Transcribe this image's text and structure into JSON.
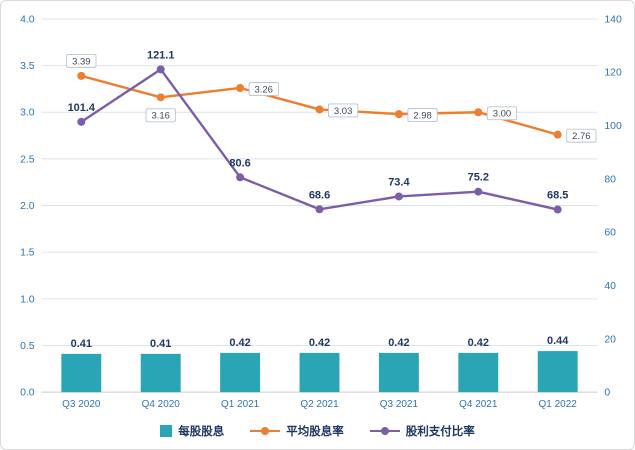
{
  "chart_data": {
    "type": "combo",
    "categories": [
      "Q3 2020",
      "Q4 2020",
      "Q1 2021",
      "Q2 2021",
      "Q3 2021",
      "Q4 2021",
      "Q1 2022"
    ],
    "series": [
      {
        "name": "每股股息",
        "type": "bar",
        "axis": "left",
        "color": "#2aa5b5",
        "values": [
          0.41,
          0.41,
          0.42,
          0.42,
          0.42,
          0.42,
          0.44
        ],
        "labels": [
          "0.41",
          "0.41",
          "0.42",
          "0.42",
          "0.42",
          "0.42",
          "0.44"
        ]
      },
      {
        "name": "平均股息率",
        "type": "line",
        "axis": "left",
        "color": "#ed7d31",
        "values": [
          3.39,
          3.16,
          3.26,
          3.03,
          2.98,
          3.0,
          2.76
        ],
        "labels": [
          "3.39",
          "3.16",
          "3.26",
          "3.03",
          "2.98",
          "3.00",
          "2.76"
        ],
        "label_style": "boxed"
      },
      {
        "name": "股利支付比率",
        "type": "line",
        "axis": "right",
        "color": "#7b5ea7",
        "values": [
          101.4,
          121.1,
          80.6,
          68.6,
          73.4,
          75.2,
          68.5
        ],
        "labels": [
          "101.4",
          "121.1",
          "80.6",
          "68.6",
          "73.4",
          "75.2",
          "68.5"
        ],
        "label_style": "bold"
      }
    ],
    "left_axis": {
      "min": 0,
      "max": 4,
      "step": 0.5,
      "ticks": [
        "0.0",
        "0.5",
        "1.0",
        "1.5",
        "2.0",
        "2.5",
        "3.0",
        "3.5",
        "4.0"
      ]
    },
    "right_axis": {
      "min": 0,
      "max": 140,
      "step": 20,
      "ticks": [
        "0",
        "20",
        "40",
        "60",
        "80",
        "100",
        "120",
        "140"
      ]
    },
    "grid": true,
    "legend_position": "bottom",
    "axis_color": "#2e74b5",
    "label_color": "#1f3864",
    "grid_color": "#dde3ec"
  }
}
